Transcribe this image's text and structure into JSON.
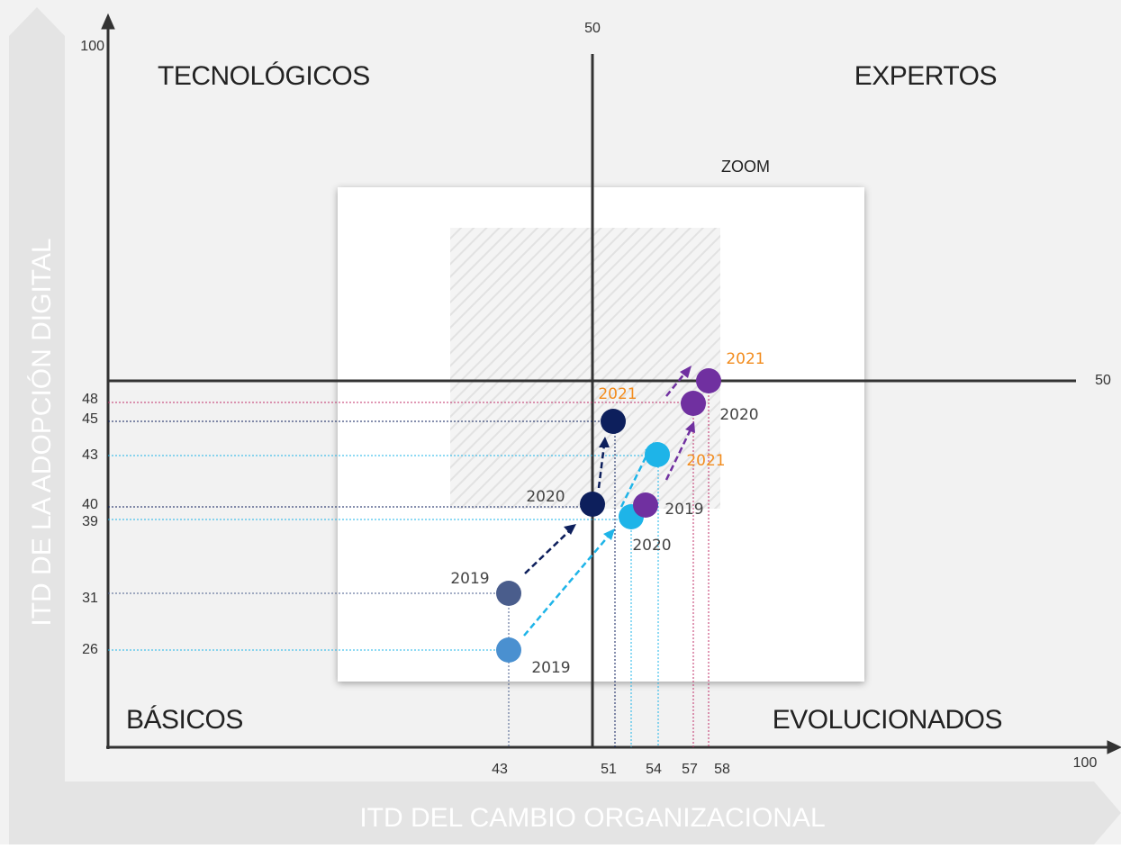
{
  "quadrants": {
    "top_left": "TECNOLÓGICOS",
    "top_right": "EXPERTOS",
    "bottom_left": "BÁSICOS",
    "bottom_right": "EVOLUCIONADOS"
  },
  "zoom_label": "ZOOM",
  "y_axis": {
    "title": "ITD DE LA ADOPCIÓN DIGITAL",
    "max_label": "100",
    "mid_label": "50",
    "ticks": [
      "48",
      "45",
      "43",
      "40",
      "39",
      "31",
      "26"
    ]
  },
  "x_axis": {
    "title": "ITD DEL CAMBIO ORGANIZACIONAL",
    "max_label": "100",
    "mid_label": "50",
    "ticks": [
      "43",
      "51",
      "54",
      "57",
      "58"
    ]
  },
  "point_labels": [
    "2019",
    "2020",
    "2021",
    "2019",
    "2020",
    "2021",
    "2019",
    "2020",
    "2021"
  ]
}
